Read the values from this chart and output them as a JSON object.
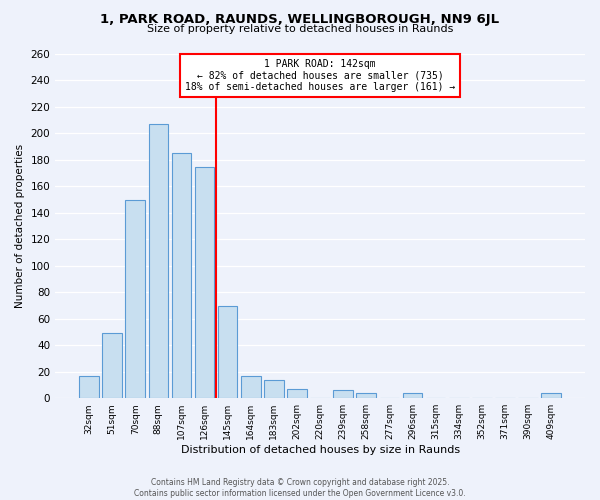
{
  "title": "1, PARK ROAD, RAUNDS, WELLINGBOROUGH, NN9 6JL",
  "subtitle": "Size of property relative to detached houses in Raunds",
  "xlabel": "Distribution of detached houses by size in Raunds",
  "ylabel": "Number of detached properties",
  "bin_labels": [
    "32sqm",
    "51sqm",
    "70sqm",
    "88sqm",
    "107sqm",
    "126sqm",
    "145sqm",
    "164sqm",
    "183sqm",
    "202sqm",
    "220sqm",
    "239sqm",
    "258sqm",
    "277sqm",
    "296sqm",
    "315sqm",
    "334sqm",
    "352sqm",
    "371sqm",
    "390sqm",
    "409sqm"
  ],
  "bar_heights": [
    17,
    49,
    150,
    207,
    185,
    175,
    70,
    17,
    14,
    7,
    0,
    6,
    4,
    0,
    4,
    0,
    0,
    0,
    0,
    0,
    4
  ],
  "bar_color": "#c8dff0",
  "bar_edge_color": "#5b9bd5",
  "vline_x_idx": 6,
  "vline_color": "red",
  "annotation_title": "1 PARK ROAD: 142sqm",
  "annotation_line1": "← 82% of detached houses are smaller (735)",
  "annotation_line2": "18% of semi-detached houses are larger (161) →",
  "ylim": [
    0,
    260
  ],
  "yticks": [
    0,
    20,
    40,
    60,
    80,
    100,
    120,
    140,
    160,
    180,
    200,
    220,
    240,
    260
  ],
  "footer1": "Contains HM Land Registry data © Crown copyright and database right 2025.",
  "footer2": "Contains public sector information licensed under the Open Government Licence v3.0.",
  "bg_color": "#eef2fb"
}
